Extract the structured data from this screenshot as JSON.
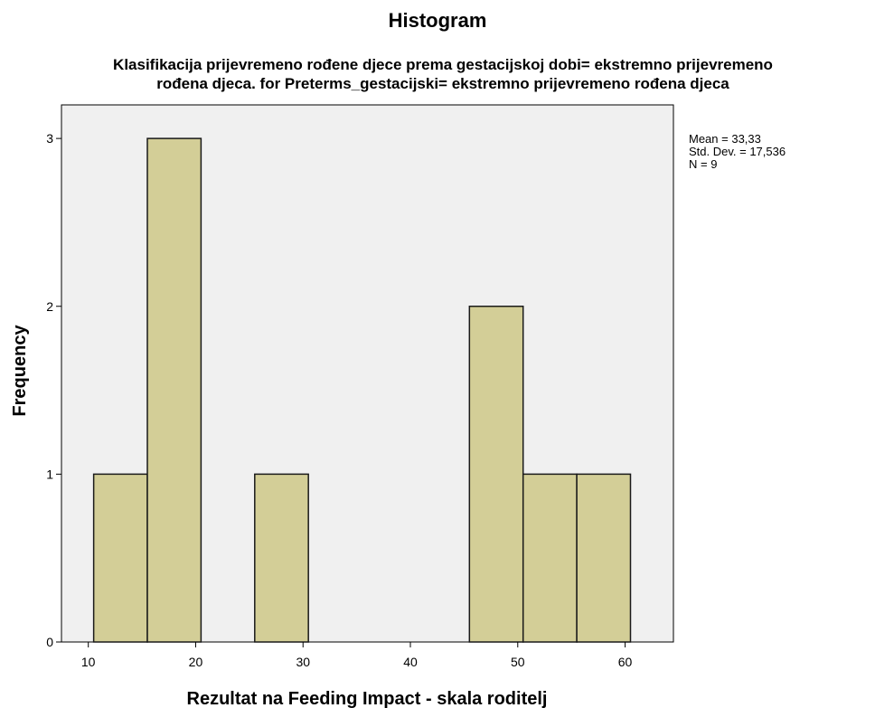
{
  "chart_data": {
    "type": "bar",
    "title": "Histogram",
    "subtitle_lines": [
      "Klasifikacija prijevremeno rođene djece prema gestacijskoj dobi= ekstremno prijevremeno",
      "rođena djeca. for Preterms_gestacijski= ekstremno prijevremeno rođena djeca"
    ],
    "xlabel": "Rezultat na Feeding Impact - skala roditelj",
    "ylabel": "Frequency",
    "bins": [
      {
        "from": 10.5,
        "to": 15.5,
        "value": 1
      },
      {
        "from": 15.5,
        "to": 20.5,
        "value": 3
      },
      {
        "from": 25.5,
        "to": 30.5,
        "value": 1
      },
      {
        "from": 45.5,
        "to": 50.5,
        "value": 2
      },
      {
        "from": 50.5,
        "to": 55.5,
        "value": 1
      },
      {
        "from": 55.5,
        "to": 60.5,
        "value": 1
      }
    ],
    "xlim": [
      7.5,
      64.5
    ],
    "ylim": [
      0,
      3.2
    ],
    "xticks": [
      10,
      20,
      30,
      40,
      50,
      60
    ],
    "yticks": [
      0,
      1,
      2,
      3
    ],
    "stats": [
      "Mean = 33,33",
      "Std. Dev. = 17,536",
      "N = 9"
    ],
    "colors": {
      "bar_fill": "#d3ce97",
      "bar_stroke": "#1a1a1a",
      "plot_background": "#f0f0f0",
      "axis": "#000000"
    },
    "grid": false
  }
}
